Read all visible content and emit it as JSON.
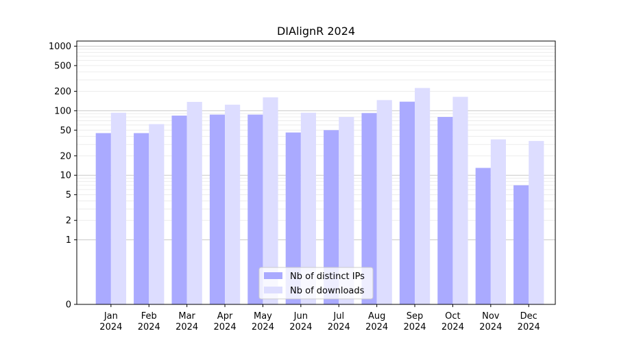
{
  "chart_data": {
    "type": "bar",
    "title": "DIAlignR 2024",
    "xlabel": "",
    "ylabel": "",
    "y_scale": "symlog",
    "ylim": [
      0,
      1200
    ],
    "y_ticks": [
      0,
      1,
      2,
      5,
      10,
      20,
      50,
      100,
      200,
      500,
      1000
    ],
    "y_tick_labels": [
      "0",
      "1",
      "2",
      "5",
      "10",
      "20",
      "50",
      "100",
      "200",
      "500",
      "1000"
    ],
    "categories": [
      [
        "Jan",
        "2024"
      ],
      [
        "Feb",
        "2024"
      ],
      [
        "Mar",
        "2024"
      ],
      [
        "Apr",
        "2024"
      ],
      [
        "May",
        "2024"
      ],
      [
        "Jun",
        "2024"
      ],
      [
        "Jul",
        "2024"
      ],
      [
        "Aug",
        "2024"
      ],
      [
        "Sep",
        "2024"
      ],
      [
        "Oct",
        "2024"
      ],
      [
        "Nov",
        "2024"
      ],
      [
        "Dec",
        "2024"
      ]
    ],
    "series": [
      {
        "name": "Nb of distinct IPs",
        "color": "#aaaaff",
        "values": [
          45,
          45,
          84,
          87,
          87,
          46,
          50,
          92,
          138,
          80,
          13,
          7
        ]
      },
      {
        "name": "Nb of downloads",
        "color": "#ddddff",
        "values": [
          93,
          62,
          137,
          124,
          161,
          93,
          80,
          146,
          225,
          164,
          36,
          34
        ]
      }
    ],
    "grid": true,
    "legend_position": "bottom-center"
  }
}
